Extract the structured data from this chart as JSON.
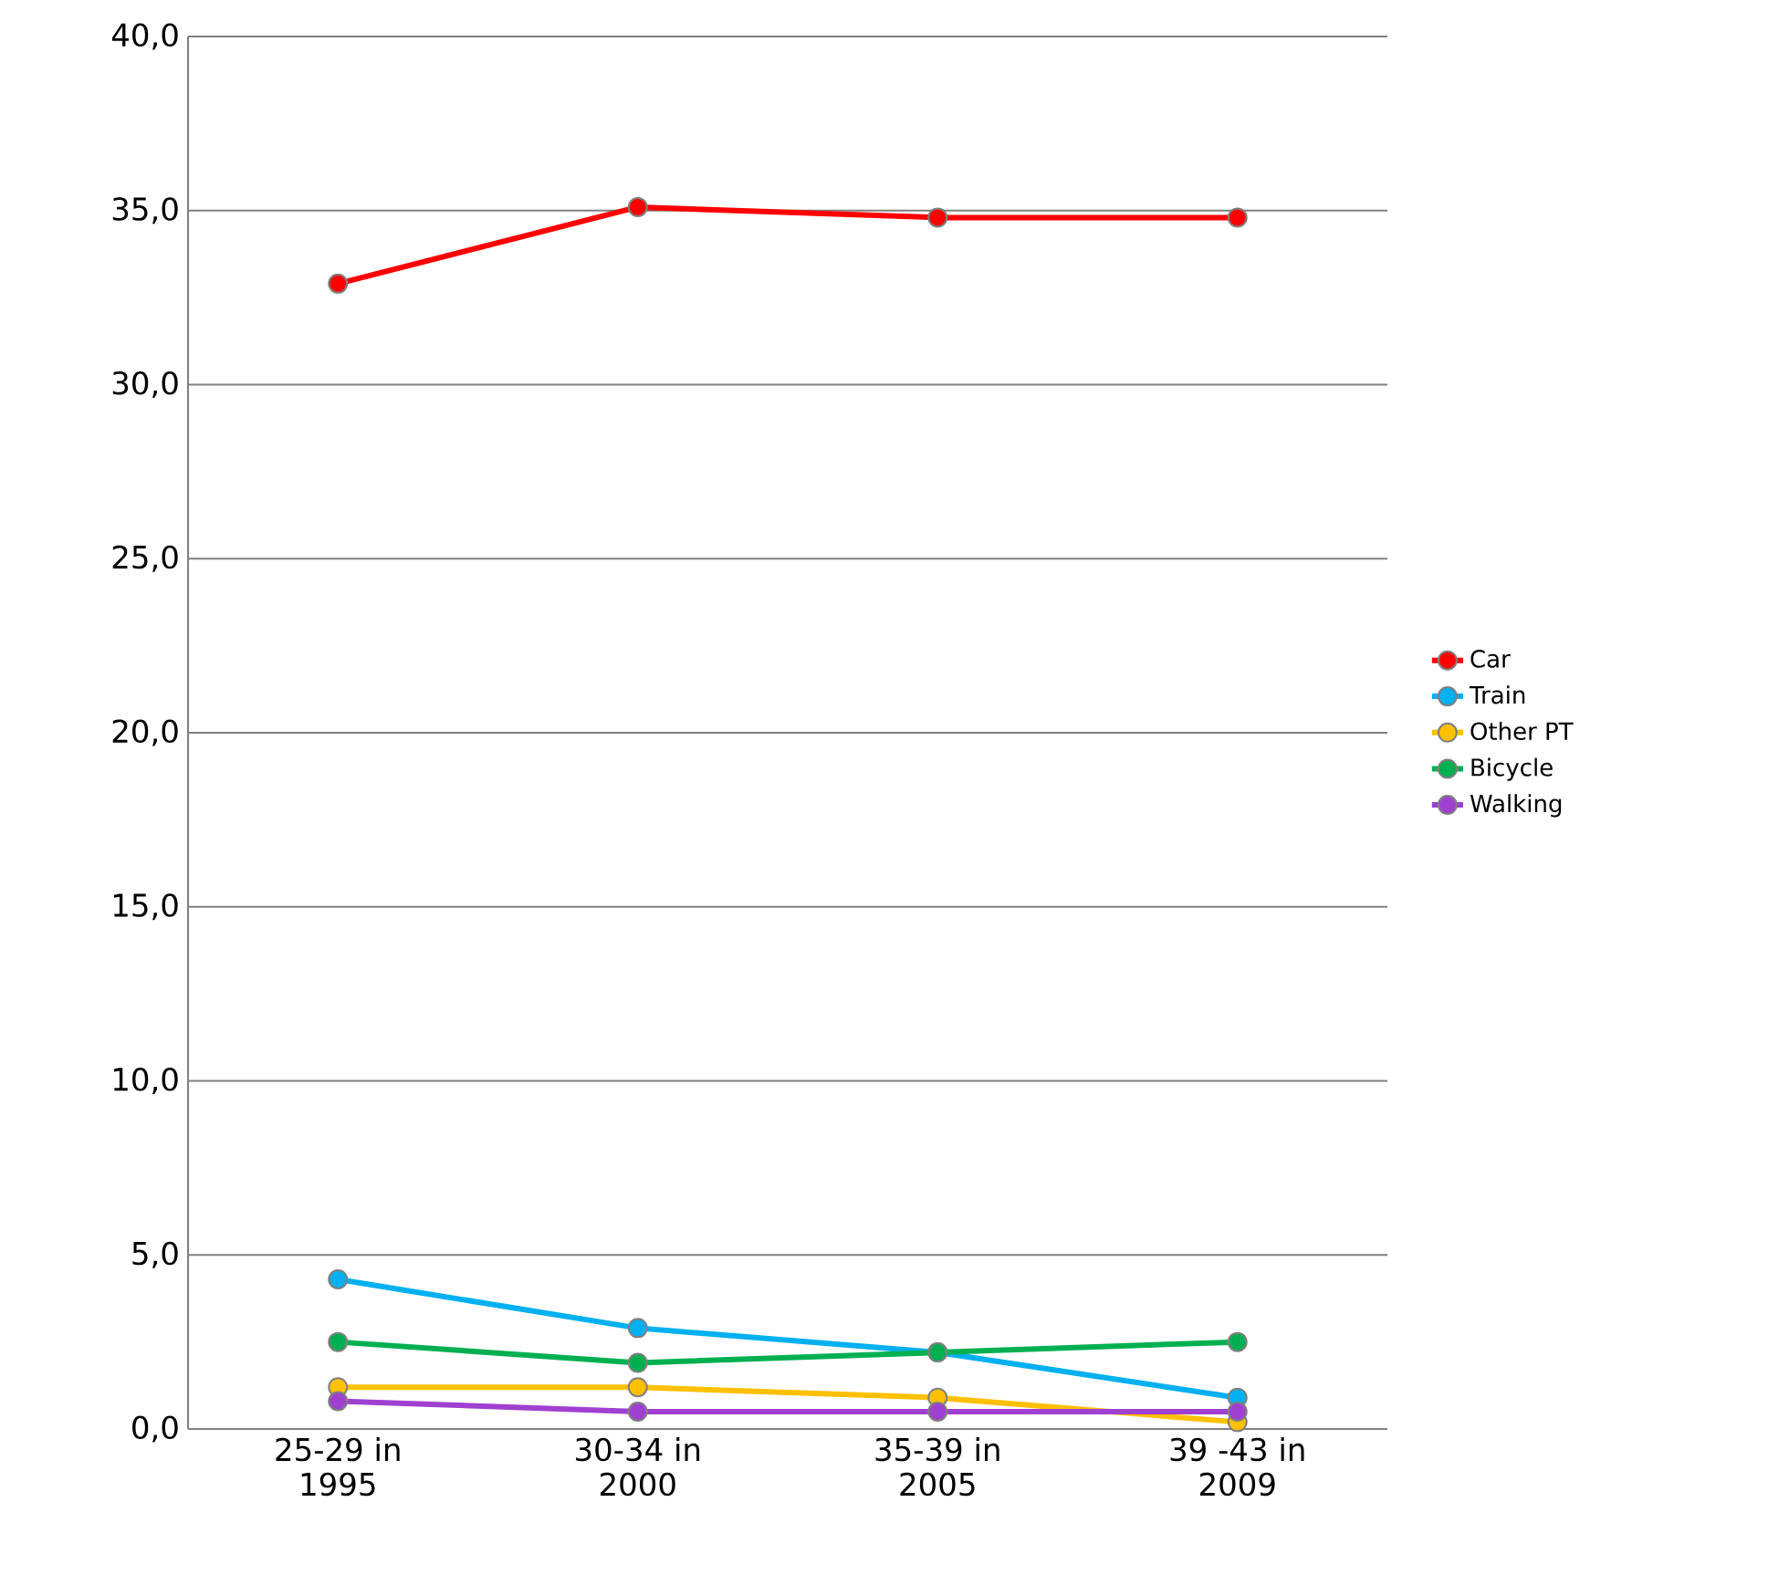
{
  "chart_data": {
    "type": "line",
    "categories": [
      "25-29 in\n1995",
      "30-34 in\n2000",
      "35-39 in\n2005",
      "39 -43 in\n2009"
    ],
    "series": [
      {
        "name": "Car",
        "color": "#ff0000",
        "values": [
          32.9,
          35.1,
          34.8,
          34.8
        ]
      },
      {
        "name": "Train",
        "color": "#00b0f0",
        "values": [
          4.3,
          2.9,
          2.2,
          0.9
        ]
      },
      {
        "name": "Other PT",
        "color": "#ffc000",
        "values": [
          1.2,
          1.2,
          0.9,
          0.2
        ]
      },
      {
        "name": "Bicycle",
        "color": "#00b050",
        "values": [
          2.5,
          1.9,
          2.2,
          2.5
        ]
      },
      {
        "name": "Walking",
        "color": "#a040d0",
        "values": [
          0.8,
          0.5,
          0.5,
          0.5
        ]
      }
    ],
    "ylim": [
      0,
      40
    ],
    "yticks": [
      {
        "value": 0,
        "label": "0,0"
      },
      {
        "value": 5,
        "label": "5,0"
      },
      {
        "value": 10,
        "label": "10,0"
      },
      {
        "value": 15,
        "label": "15,0"
      },
      {
        "value": 20,
        "label": "20,0"
      },
      {
        "value": 25,
        "label": "25,0"
      },
      {
        "value": 30,
        "label": "30,0"
      },
      {
        "value": 35,
        "label": "35,0"
      },
      {
        "value": 40,
        "label": "40,0"
      }
    ],
    "grid": "y",
    "legend": "right",
    "marker": "circle",
    "line_style": "solid"
  }
}
